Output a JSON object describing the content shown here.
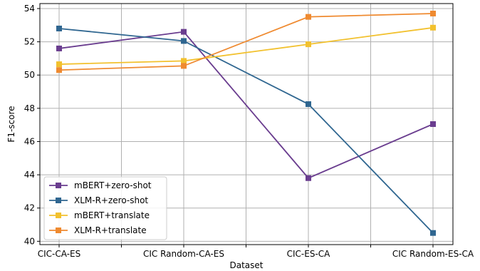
{
  "chart_data": {
    "type": "line",
    "title": "",
    "xlabel": "Dataset",
    "ylabel": "F1-score",
    "categories": [
      "CIC-CA-ES",
      "CIC Random-CA-ES",
      "CIC-ES-CA",
      "CIC Random-ES-CA"
    ],
    "ylim": [
      39.8,
      54.3
    ],
    "yticks": [
      "40",
      "42",
      "44",
      "46",
      "48",
      "50",
      "52",
      "54"
    ],
    "grid": true,
    "legend_position": "lower-left",
    "series": [
      {
        "name": "mBERT+zero-shot",
        "color": "#6a3d8f",
        "values": [
          51.6,
          52.6,
          43.8,
          47.05
        ]
      },
      {
        "name": "XLM-R+zero-shot",
        "color": "#2f6690",
        "values": [
          52.8,
          52.05,
          48.25,
          40.5
        ]
      },
      {
        "name": "mBERT+translate",
        "color": "#f2c12e",
        "values": [
          50.65,
          50.85,
          51.85,
          52.85
        ]
      },
      {
        "name": "XLM-R+translate",
        "color": "#ef8a30",
        "values": [
          50.3,
          50.55,
          53.5,
          53.7
        ]
      }
    ]
  }
}
